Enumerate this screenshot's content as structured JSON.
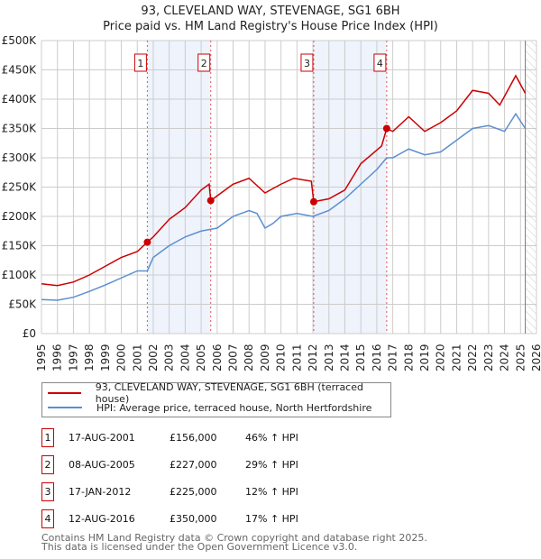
{
  "title": "93, CLEVELAND WAY, STEVENAGE, SG1 6BH",
  "subtitle": "Price paid vs. HM Land Registry's House Price Index (HPI)",
  "chart_data": {
    "type": "line",
    "xlim": [
      1995,
      2026
    ],
    "ylim": [
      0,
      500000
    ],
    "yticks": [
      {
        "v": 0,
        "l": "£0"
      },
      {
        "v": 50000,
        "l": "£50K"
      },
      {
        "v": 100000,
        "l": "£100K"
      },
      {
        "v": 150000,
        "l": "£150K"
      },
      {
        "v": 200000,
        "l": "£200K"
      },
      {
        "v": 250000,
        "l": "£250K"
      },
      {
        "v": 300000,
        "l": "£300K"
      },
      {
        "v": 350000,
        "l": "£350K"
      },
      {
        "v": 400000,
        "l": "£400K"
      },
      {
        "v": 450000,
        "l": "£450K"
      },
      {
        "v": 500000,
        "l": "£500K"
      }
    ],
    "xticks": [
      "1995",
      "1996",
      "1997",
      "1998",
      "1999",
      "2000",
      "2001",
      "2002",
      "2003",
      "2004",
      "2005",
      "2006",
      "2007",
      "2008",
      "2009",
      "2010",
      "2011",
      "2012",
      "2013",
      "2014",
      "2015",
      "2016",
      "2017",
      "2018",
      "2019",
      "2020",
      "2021",
      "2022",
      "2023",
      "2024",
      "2025",
      "2026"
    ],
    "series": [
      {
        "name": "93, CLEVELAND WAY, STEVENAGE, SG1 6BH (terraced house)",
        "color": "#cc0000",
        "x": [
          1995,
          1996,
          1997,
          1998,
          1999,
          2000,
          2001,
          2001.63,
          2002,
          2003,
          2004,
          2005,
          2005.5,
          2005.6,
          2006,
          2007,
          2008,
          2009,
          2010,
          2010.8,
          2011.9,
          2012.05,
          2013,
          2014,
          2015,
          2016.3,
          2016.62,
          2017,
          2018,
          2019,
          2020,
          2021,
          2022,
          2023,
          2023.7,
          2024.7,
          2025.3
        ],
        "y": [
          85000,
          82000,
          88000,
          100000,
          115000,
          130000,
          140000,
          156000,
          165000,
          195000,
          215000,
          245000,
          255000,
          227000,
          235000,
          255000,
          265000,
          240000,
          255000,
          265000,
          260000,
          225000,
          230000,
          245000,
          290000,
          320000,
          350000,
          345000,
          370000,
          345000,
          360000,
          380000,
          415000,
          410000,
          390000,
          440000,
          410000
        ]
      },
      {
        "name": "HPI: Average price, terraced house, North Hertfordshire",
        "color": "#5b8fd0",
        "x": [
          1995,
          1996,
          1997,
          1998,
          1999,
          2000,
          2001,
          2001.63,
          2002,
          2003,
          2004,
          2005,
          2006,
          2007,
          2008,
          2008.5,
          2009,
          2009.5,
          2010,
          2011,
          2012,
          2013,
          2014,
          2015,
          2016,
          2016.62,
          2017,
          2018,
          2019,
          2020,
          2021,
          2022,
          2023,
          2024,
          2024.7,
          2025.3
        ],
        "y": [
          58000,
          57000,
          62000,
          72000,
          83000,
          95000,
          107000,
          107000,
          130000,
          150000,
          165000,
          175000,
          180000,
          200000,
          210000,
          205000,
          180000,
          188000,
          200000,
          205000,
          200000,
          210000,
          230000,
          255000,
          280000,
          300000,
          300000,
          315000,
          305000,
          310000,
          330000,
          350000,
          355000,
          345000,
          375000,
          350000
        ]
      }
    ],
    "sales": [
      {
        "n": "1",
        "x": 2001.63,
        "y": 156000,
        "date": "17-AUG-2001",
        "price": "£156,000",
        "hpi": "46% ↑ HPI"
      },
      {
        "n": "2",
        "x": 2005.6,
        "y": 227000,
        "date": "08-AUG-2005",
        "price": "£227,000",
        "hpi": "29% ↑ HPI"
      },
      {
        "n": "3",
        "x": 2012.05,
        "y": 225000,
        "date": "17-JAN-2012",
        "price": "£225,000",
        "hpi": "12% ↑ HPI"
      },
      {
        "n": "4",
        "x": 2016.62,
        "y": 350000,
        "date": "12-AUG-2016",
        "price": "£350,000",
        "hpi": "17% ↑ HPI"
      }
    ],
    "shaded": [
      [
        2001.63,
        2005.6
      ],
      [
        2012.05,
        2016.62
      ]
    ],
    "forecast_from": 2025.3
  },
  "footer": [
    "Contains HM Land Registry data © Crown copyright and database right 2025.",
    "This data is licensed under the Open Government Licence v3.0."
  ]
}
